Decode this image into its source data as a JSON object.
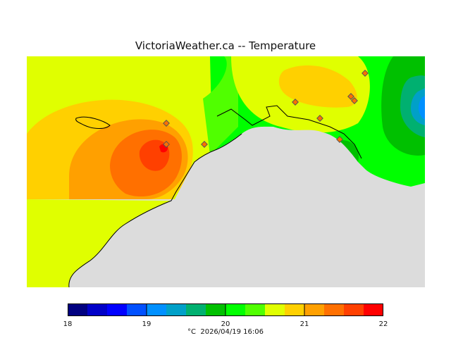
{
  "title": "VictoriaWeather.ca -- Temperature",
  "legend": {
    "ticks": [
      "18",
      "19",
      "20",
      "21",
      "22"
    ],
    "colors": [
      "#000080",
      "#0000c8",
      "#0000ff",
      "#0050ff",
      "#0090ff",
      "#00a0c8",
      "#00b070",
      "#00c000",
      "#00ff00",
      "#50ff00",
      "#e0ff00",
      "#ffd000",
      "#ffa000",
      "#ff7000",
      "#ff4000",
      "#ff0000"
    ],
    "units": "°C",
    "timestamp": "2026/04/19 16:06"
  },
  "stations": 9
}
